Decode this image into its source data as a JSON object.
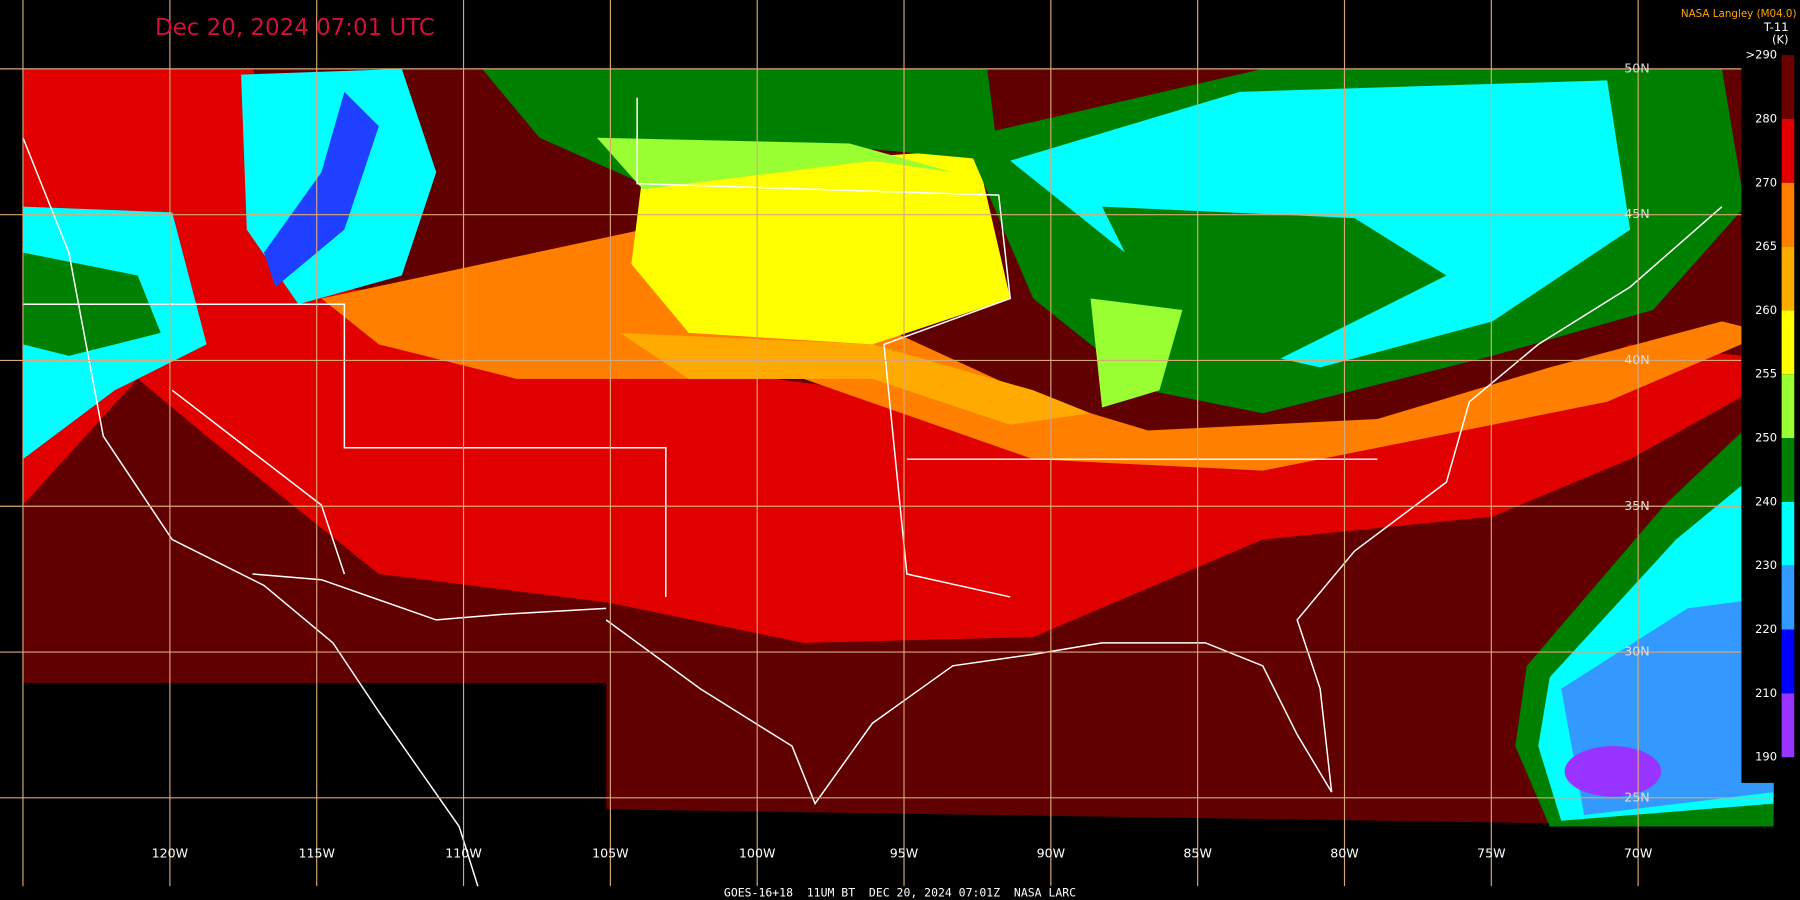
{
  "title": "Dec 20, 2024 07:01 UTC",
  "credit": "NASA Langley (M04.0)",
  "colorbar": {
    "title": "T-11",
    "unit": "(K)",
    "labels": [
      ">290",
      "280",
      "270",
      "265",
      "260",
      "255",
      "250",
      "240",
      "230",
      "220",
      "210",
      "190"
    ],
    "colors": [
      "#6b0000",
      "#e00000",
      "#ff7f00",
      "#ffaa00",
      "#ffff00",
      "#99ff33",
      "#008000",
      "#00ffff",
      "#3399ff",
      "#0000ff",
      "#9933ff"
    ]
  },
  "longitude_labels": [
    "120W",
    "115W",
    "110W",
    "105W",
    "100W",
    "95W",
    "90W",
    "85W",
    "80W",
    "75W",
    "70W"
  ],
  "latitude_labels": [
    "50N",
    "45N",
    "40N",
    "35N",
    "30N",
    "25N"
  ],
  "footer": "GOES-16+18  11UM BT  DEC 20, 2024 07:01Z  NASA LARC"
}
